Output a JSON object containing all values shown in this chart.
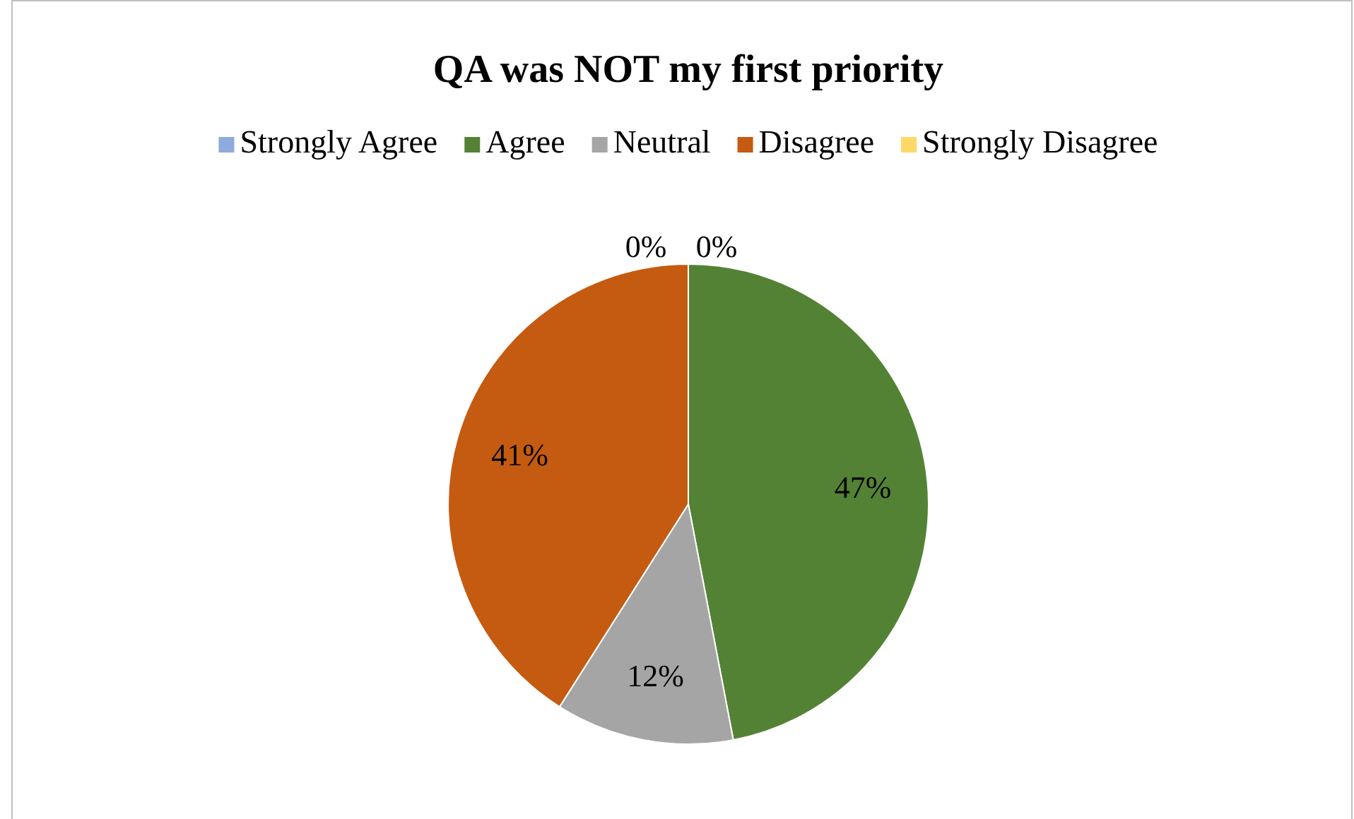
{
  "chart_data": {
    "type": "pie",
    "title": "QA was NOT my first priority",
    "categories": [
      "Strongly Agree",
      "Agree",
      "Neutral",
      "Disagree",
      "Strongly Disagree"
    ],
    "values": [
      0,
      47,
      12,
      41,
      0
    ],
    "colors": [
      "#8faadc",
      "#548235",
      "#a5a5a5",
      "#c55a11",
      "#ffd966"
    ],
    "value_labels": [
      "0%",
      "47%",
      "12%",
      "41%",
      "0%"
    ],
    "legend": "top"
  }
}
